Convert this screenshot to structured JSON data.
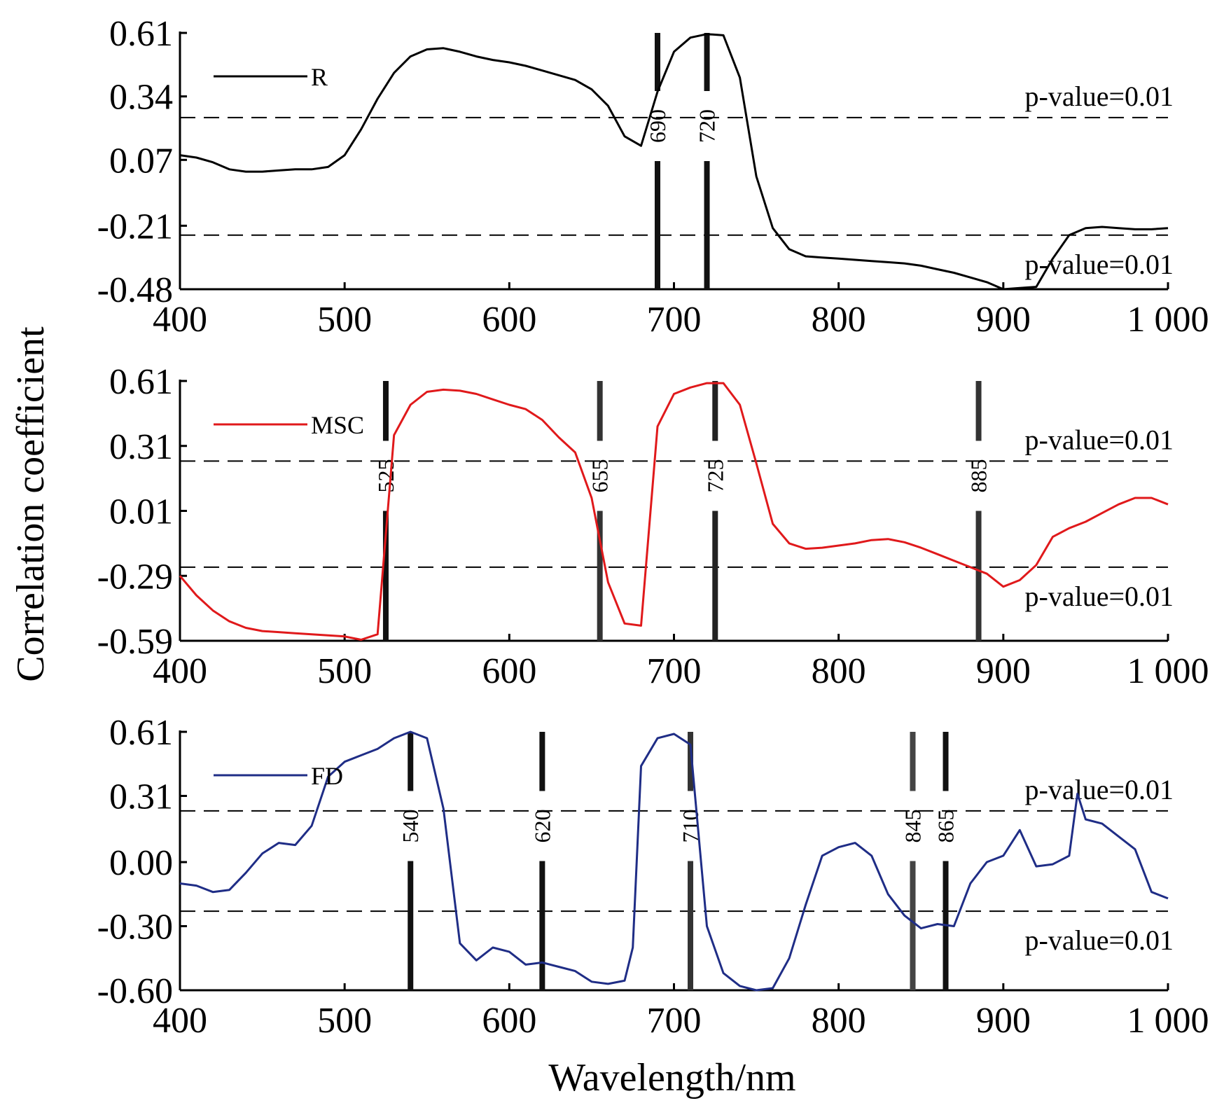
{
  "ylabel": "Correlation coefficient",
  "xlabel": "Wavelength/nm",
  "chart_data": [
    {
      "type": "line",
      "legend": "upper left",
      "x": [
        400,
        410,
        420,
        430,
        440,
        450,
        460,
        470,
        480,
        490,
        500,
        510,
        520,
        530,
        540,
        550,
        560,
        570,
        580,
        590,
        600,
        610,
        620,
        630,
        640,
        650,
        660,
        670,
        680,
        690,
        700,
        710,
        720,
        730,
        740,
        750,
        760,
        770,
        780,
        790,
        800,
        810,
        820,
        830,
        840,
        850,
        860,
        870,
        880,
        890,
        900,
        910,
        920,
        930,
        940,
        950,
        960,
        970,
        980,
        990,
        1000
      ],
      "series": [
        {
          "name": "R",
          "color": "#000000",
          "values": [
            0.09,
            0.08,
            0.06,
            0.03,
            0.02,
            0.02,
            0.025,
            0.03,
            0.03,
            0.04,
            0.09,
            0.2,
            0.33,
            0.44,
            0.51,
            0.54,
            0.545,
            0.53,
            0.51,
            0.495,
            0.485,
            0.47,
            0.45,
            0.43,
            0.41,
            0.37,
            0.3,
            0.17,
            0.13,
            0.36,
            0.53,
            0.59,
            0.605,
            0.6,
            0.42,
            0.0,
            -0.22,
            -0.31,
            -0.34,
            -0.345,
            -0.35,
            -0.355,
            -0.36,
            -0.365,
            -0.37,
            -0.38,
            -0.395,
            -0.41,
            -0.43,
            -0.45,
            -0.48,
            -0.475,
            -0.47,
            -0.35,
            -0.25,
            -0.22,
            -0.215,
            -0.22,
            -0.225,
            -0.225,
            -0.22
          ]
        }
      ],
      "xlim": [
        400,
        1000
      ],
      "xticks": [
        400,
        500,
        600,
        700,
        800,
        900,
        {
          "value": 1000,
          "label": "1 000"
        }
      ],
      "ylim": [
        -0.48,
        0.61
      ],
      "yticks": [
        -0.48,
        -0.21,
        0.07,
        0.34,
        0.61
      ],
      "hlines": [
        0.25,
        -0.25
      ],
      "annotations": [
        "p-value=0.01",
        "p-value=0.01"
      ],
      "markers": [
        690,
        720
      ],
      "marker_colors": [
        "#111111",
        "#111111"
      ]
    },
    {
      "type": "line",
      "legend": "upper left",
      "x": [
        400,
        410,
        420,
        430,
        440,
        450,
        460,
        470,
        480,
        490,
        500,
        510,
        520,
        530,
        540,
        550,
        560,
        570,
        580,
        590,
        600,
        610,
        620,
        630,
        640,
        650,
        660,
        670,
        680,
        690,
        700,
        710,
        720,
        730,
        740,
        750,
        760,
        770,
        780,
        790,
        800,
        810,
        820,
        830,
        840,
        850,
        860,
        870,
        880,
        890,
        900,
        910,
        920,
        930,
        940,
        950,
        960,
        970,
        980,
        990,
        1000
      ],
      "series": [
        {
          "name": "MSC",
          "color": "#e0191b",
          "values": [
            -0.29,
            -0.38,
            -0.45,
            -0.5,
            -0.53,
            -0.545,
            -0.55,
            -0.555,
            -0.56,
            -0.565,
            -0.57,
            -0.585,
            -0.56,
            0.36,
            0.5,
            0.56,
            0.57,
            0.565,
            0.55,
            0.525,
            0.5,
            0.48,
            0.43,
            0.35,
            0.28,
            0.07,
            -0.32,
            -0.51,
            -0.52,
            0.4,
            0.55,
            0.58,
            0.6,
            0.6,
            0.5,
            0.23,
            -0.05,
            -0.14,
            -0.165,
            -0.16,
            -0.15,
            -0.14,
            -0.125,
            -0.12,
            -0.135,
            -0.16,
            -0.19,
            -0.22,
            -0.25,
            -0.28,
            -0.34,
            -0.31,
            -0.24,
            -0.11,
            -0.07,
            -0.04,
            0.0,
            0.04,
            0.07,
            0.07,
            0.04
          ]
        }
      ],
      "xlim": [
        400,
        1000
      ],
      "xticks": [
        400,
        500,
        600,
        700,
        800,
        900,
        {
          "value": 1000,
          "label": "1 000"
        }
      ],
      "ylim": [
        -0.59,
        0.61
      ],
      "yticks": [
        -0.59,
        -0.29,
        0.01,
        0.31,
        0.61
      ],
      "hlines": [
        0.24,
        -0.25
      ],
      "annotations": [
        "p-value=0.01",
        "p-value=0.01"
      ],
      "markers": [
        525,
        655,
        725,
        885
      ],
      "marker_colors": [
        "#111111",
        "#333333",
        "#222222",
        "#333333"
      ]
    },
    {
      "type": "line",
      "legend": "upper left",
      "x": [
        400,
        410,
        420,
        430,
        440,
        450,
        460,
        470,
        480,
        490,
        500,
        510,
        520,
        530,
        540,
        550,
        560,
        570,
        580,
        590,
        600,
        610,
        620,
        630,
        640,
        650,
        660,
        670,
        675,
        680,
        690,
        700,
        710,
        720,
        730,
        740,
        750,
        760,
        770,
        780,
        790,
        800,
        810,
        820,
        830,
        840,
        850,
        860,
        870,
        880,
        890,
        900,
        910,
        920,
        930,
        940,
        945,
        950,
        960,
        970,
        980,
        990,
        1000
      ],
      "series": [
        {
          "name": "FD",
          "color": "#1f2d86",
          "values": [
            -0.1,
            -0.11,
            -0.14,
            -0.13,
            -0.05,
            0.04,
            0.09,
            0.08,
            0.17,
            0.4,
            0.47,
            0.5,
            0.53,
            0.58,
            0.61,
            0.58,
            0.25,
            -0.38,
            -0.46,
            -0.4,
            -0.42,
            -0.48,
            -0.47,
            -0.49,
            -0.51,
            -0.56,
            -0.57,
            -0.555,
            -0.4,
            0.45,
            0.58,
            0.6,
            0.55,
            -0.3,
            -0.52,
            -0.58,
            -0.6,
            -0.59,
            -0.45,
            -0.2,
            0.03,
            0.07,
            0.09,
            0.03,
            -0.15,
            -0.25,
            -0.31,
            -0.29,
            -0.3,
            -0.1,
            0.0,
            0.03,
            0.15,
            -0.02,
            -0.01,
            0.03,
            0.32,
            0.2,
            0.18,
            0.12,
            0.06,
            -0.14,
            -0.17
          ]
        }
      ],
      "xlim": [
        400,
        1000
      ],
      "xticks": [
        400,
        500,
        600,
        700,
        800,
        900,
        {
          "value": 1000,
          "label": "1 000"
        }
      ],
      "ylim": [
        -0.6,
        0.61
      ],
      "yticks": [
        {
          "value": -0.6,
          "label": "-0.60"
        },
        {
          "value": -0.3,
          "label": "-0.30"
        },
        {
          "value": 0,
          "label": "0.00"
        },
        0.31,
        0.61
      ],
      "hlines": [
        0.24,
        -0.23
      ],
      "annotations": [
        "p-value=0.01",
        "p-value=0.01"
      ],
      "markers": [
        540,
        620,
        710,
        845,
        865
      ],
      "marker_colors": [
        "#111111",
        "#111111",
        "#333333",
        "#444444",
        "#111111"
      ]
    }
  ]
}
